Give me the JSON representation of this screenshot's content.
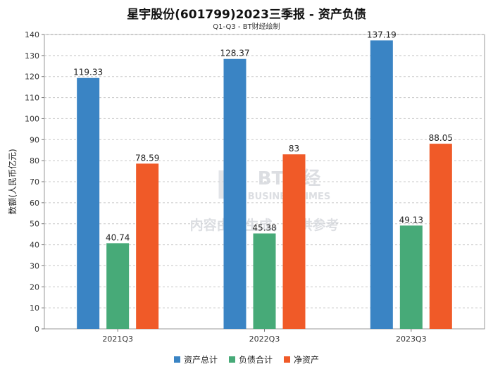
{
  "title": "星宇股份(601799)2023三季报 - 资产负债",
  "subtitle": "Q1-Q3 - BT财经绘制",
  "watermark": {
    "brand": "BT财经",
    "brand_en": "BUSINESSTIMES",
    "notice": "内容由AI生成，仅供参考"
  },
  "chart_data": {
    "type": "bar",
    "categories": [
      "2021Q3",
      "2022Q3",
      "2023Q3"
    ],
    "series": [
      {
        "name": "资产总计",
        "color": "#3a84c4",
        "values": [
          119.33,
          128.37,
          137.19
        ],
        "labels": [
          "119.33",
          "128.37",
          "137.19"
        ]
      },
      {
        "name": "负债合计",
        "color": "#47aa78",
        "values": [
          40.74,
          45.38,
          49.13
        ],
        "labels": [
          "40.74",
          "45.38",
          "49.13"
        ]
      },
      {
        "name": "净资产",
        "color": "#f05a28",
        "values": [
          78.59,
          83,
          88.05
        ],
        "labels": [
          "78.59",
          "83",
          "88.05"
        ]
      }
    ],
    "ylabel": "数额(人民币亿元)",
    "xlabel": "",
    "ylim": [
      0,
      140
    ],
    "yticks": [
      0,
      10,
      20,
      30,
      40,
      50,
      60,
      70,
      80,
      90,
      100,
      110,
      120,
      130,
      140
    ],
    "grid": true,
    "legend_position": "bottom"
  }
}
